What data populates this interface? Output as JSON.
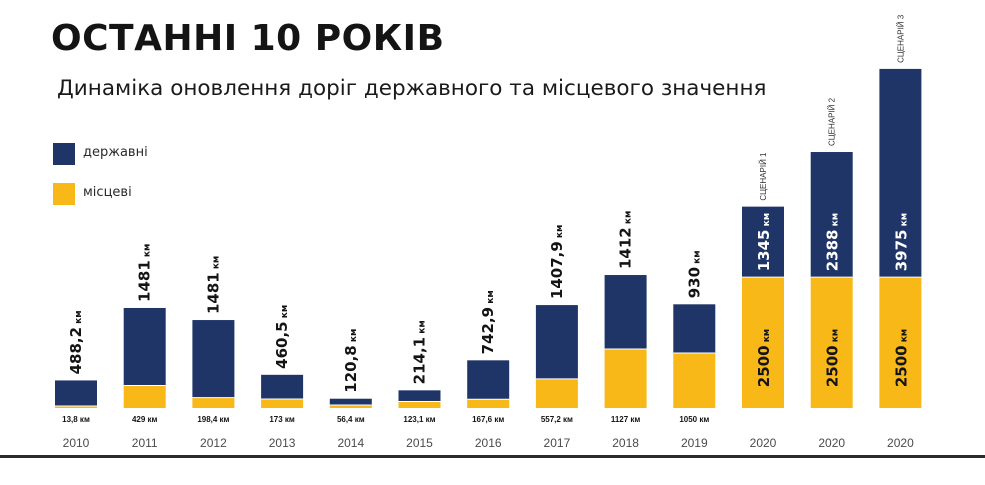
{
  "title": "ОСТАННІ 10 РОКІВ",
  "subtitle": "Динаміка оновлення доріг державного та місцевого значення",
  "legend": [
    {
      "label": "державні",
      "color": "#1f3568"
    },
    {
      "label": "місцеві",
      "color": "#f7b818"
    }
  ],
  "colors": {
    "state": "#1f3568",
    "local": "#f7b818",
    "text": "#141414",
    "year": "#4a4a4a"
  },
  "chart_data": {
    "type": "bar",
    "stacked": true,
    "unit": "км",
    "categories": [
      "2010",
      "2011",
      "2012",
      "2013",
      "2014",
      "2015",
      "2016",
      "2017",
      "2018",
      "2019",
      "2020",
      "2020",
      "2020"
    ],
    "series": [
      {
        "name": "місцеві",
        "values": [
          13.8,
          429,
          198.4,
          173,
          56.4,
          123.1,
          167.6,
          557.2,
          1127,
          1050,
          2500,
          2500,
          2500
        ],
        "labels": [
          "13,8 км",
          "429 км",
          "198,4 км",
          "173 км",
          "56,4 км",
          "123,1 км",
          "167,6 км",
          "557,2 км",
          "1127 км",
          "1050 км",
          "2500 км",
          "2500 км",
          "2500 км"
        ]
      },
      {
        "name": "державні",
        "values": [
          488.2,
          1481,
          1481,
          460.5,
          120.8,
          214.1,
          742.9,
          1407.9,
          1412,
          930,
          1345,
          2388,
          3975
        ],
        "labels": [
          "488,2 км",
          "1481 км",
          "1481 км",
          "460,5 км",
          "120,8 км",
          "214,1 км",
          "742,9 км",
          "1407,9 км",
          "1412 км",
          "930 км",
          "1345 км",
          "2388 км",
          "3975 км"
        ]
      }
    ],
    "annotations": [
      "",
      "",
      "",
      "",
      "",
      "",
      "",
      "",
      "",
      "",
      "СЦЕНАРІЙ 1",
      "СЦЕНАРІЙ 2",
      "СЦЕНАРІЙ 3"
    ]
  }
}
